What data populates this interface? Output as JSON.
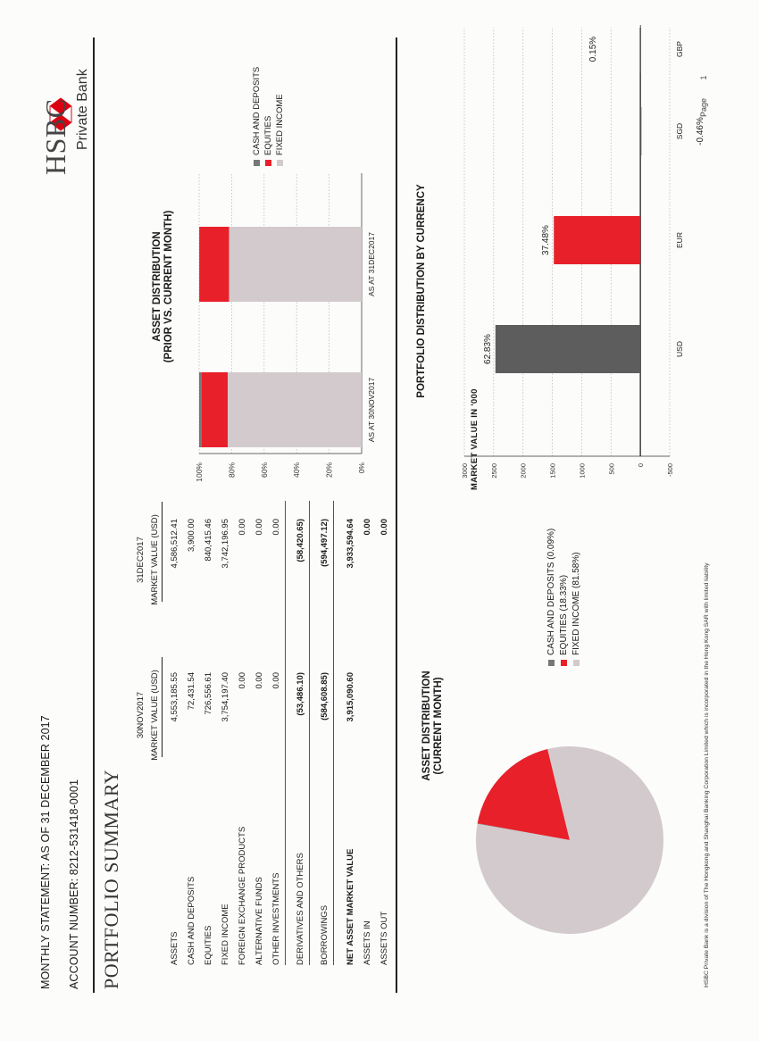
{
  "header": {
    "statement": "MONTHLY STATEMENT: AS OF 31 DECEMBER 2017",
    "account": "ACCOUNT NUMBER: 8212-531418-0001",
    "title": "PORTFOLIO SUMMARY"
  },
  "logo": {
    "name": "HSBC",
    "sub": "Private Bank"
  },
  "page": {
    "label": "Page",
    "number": "1"
  },
  "table": {
    "col1_date": "30NOV2017",
    "col2_date": "31DEC2017",
    "col_header": "MARKET VALUE (USD)",
    "rows": [
      {
        "label": "ASSETS",
        "v1": "4,553,185.55",
        "v2": "4,586,512.41"
      },
      {
        "label": "CASH AND DEPOSITS",
        "v1": "72,431.54",
        "v2": "3,900.00"
      },
      {
        "label": "EQUITIES",
        "v1": "726,556.61",
        "v2": "840,415.46"
      },
      {
        "label": "FIXED INCOME",
        "v1": "3,754,197.40",
        "v2": "3,742,196.95"
      },
      {
        "label": "FOREIGN EXCHANGE PRODUCTS",
        "v1": "0.00",
        "v2": "0.00"
      },
      {
        "label": "ALTERNATIVE FUNDS",
        "v1": "0.00",
        "v2": "0.00"
      },
      {
        "label": "OTHER INVESTMENTS",
        "v1": "0.00",
        "v2": "0.00"
      },
      {
        "label": "DERIVATIVES AND OTHERS",
        "v1": "(53,486.10)",
        "v2": "(58,420.65)"
      },
      {
        "label": "BORROWINGS",
        "v1": "(584,608.85)",
        "v2": "(594,497.12)"
      },
      {
        "label": "NET ASSET MARKET VALUE",
        "v1": "3,915,090.60",
        "v2": "3,933,594.64"
      },
      {
        "label": "ASSETS IN",
        "v1": "",
        "v2": "0.00"
      },
      {
        "label": "ASSETS OUT",
        "v1": "",
        "v2": "0.00"
      }
    ]
  },
  "colors": {
    "cash": "#777777",
    "equities": "#e8202a",
    "fixed_income": "#d2cacd",
    "usd_bar": "#5d5d5d",
    "eur_bar": "#e8202a",
    "brand_red": "#db0011"
  },
  "pie": {
    "title_line1": "ASSET DISTRIBUTION",
    "title_line2": "(CURRENT MONTH)",
    "legend": [
      "CASH AND DEPOSITS (0.09%)",
      "EQUITIES (18.33%)",
      "FIXED INCOME (81.58%)"
    ]
  },
  "stack": {
    "title_line1": "ASSET DISTRIBUTION",
    "title_line2": "(PRIOR VS. CURRENT MONTH)",
    "legend": [
      "CASH AND DEPOSITS",
      "EQUITIES",
      "FIXED INCOME"
    ]
  },
  "currency": {
    "title": "PORTFOLIO DISTRIBUTION BY CURRENCY",
    "ylabel": "MARKET VALUE IN '000"
  },
  "footer": "HSBC Private Bank is a division of The Hongkong and Shanghai Banking Corporation Limited which is incorporated in the Hong Kong SAR with limited liability",
  "chart_data": [
    {
      "type": "pie",
      "title": "ASSET DISTRIBUTION (CURRENT MONTH)",
      "categories": [
        "CASH AND DEPOSITS",
        "EQUITIES",
        "FIXED INCOME"
      ],
      "values": [
        0.09,
        18.33,
        81.58
      ],
      "unit": "%"
    },
    {
      "type": "bar",
      "stacked": true,
      "title": "ASSET DISTRIBUTION (PRIOR VS. CURRENT MONTH)",
      "categories": [
        "AS AT 30NOV2017",
        "AS AT 31DEC2017"
      ],
      "series": [
        {
          "name": "CASH AND DEPOSITS",
          "values": [
            1.6,
            0.1
          ]
        },
        {
          "name": "EQUITIES",
          "values": [
            16.0,
            18.3
          ]
        },
        {
          "name": "FIXED INCOME",
          "values": [
            82.4,
            81.6
          ]
        }
      ],
      "yticks": [
        "0%",
        "20%",
        "40%",
        "60%",
        "80%",
        "100%"
      ],
      "ylim": [
        0,
        100
      ],
      "grid": true,
      "legend": "right"
    },
    {
      "type": "bar",
      "title": "PORTFOLIO DISTRIBUTION BY CURRENCY",
      "categories": [
        "USD",
        "EUR",
        "SGD",
        "GBP"
      ],
      "values": [
        2470,
        1475,
        -18,
        6
      ],
      "data_labels": [
        "62.83%",
        "37.48%",
        "-0.46%",
        "0.15%"
      ],
      "ylabel": "MARKET VALUE IN '000",
      "yticks": [
        -500,
        0,
        500,
        1000,
        1500,
        2000,
        2500,
        3000
      ],
      "ylim": [
        -500,
        3000
      ],
      "grid": true
    }
  ]
}
